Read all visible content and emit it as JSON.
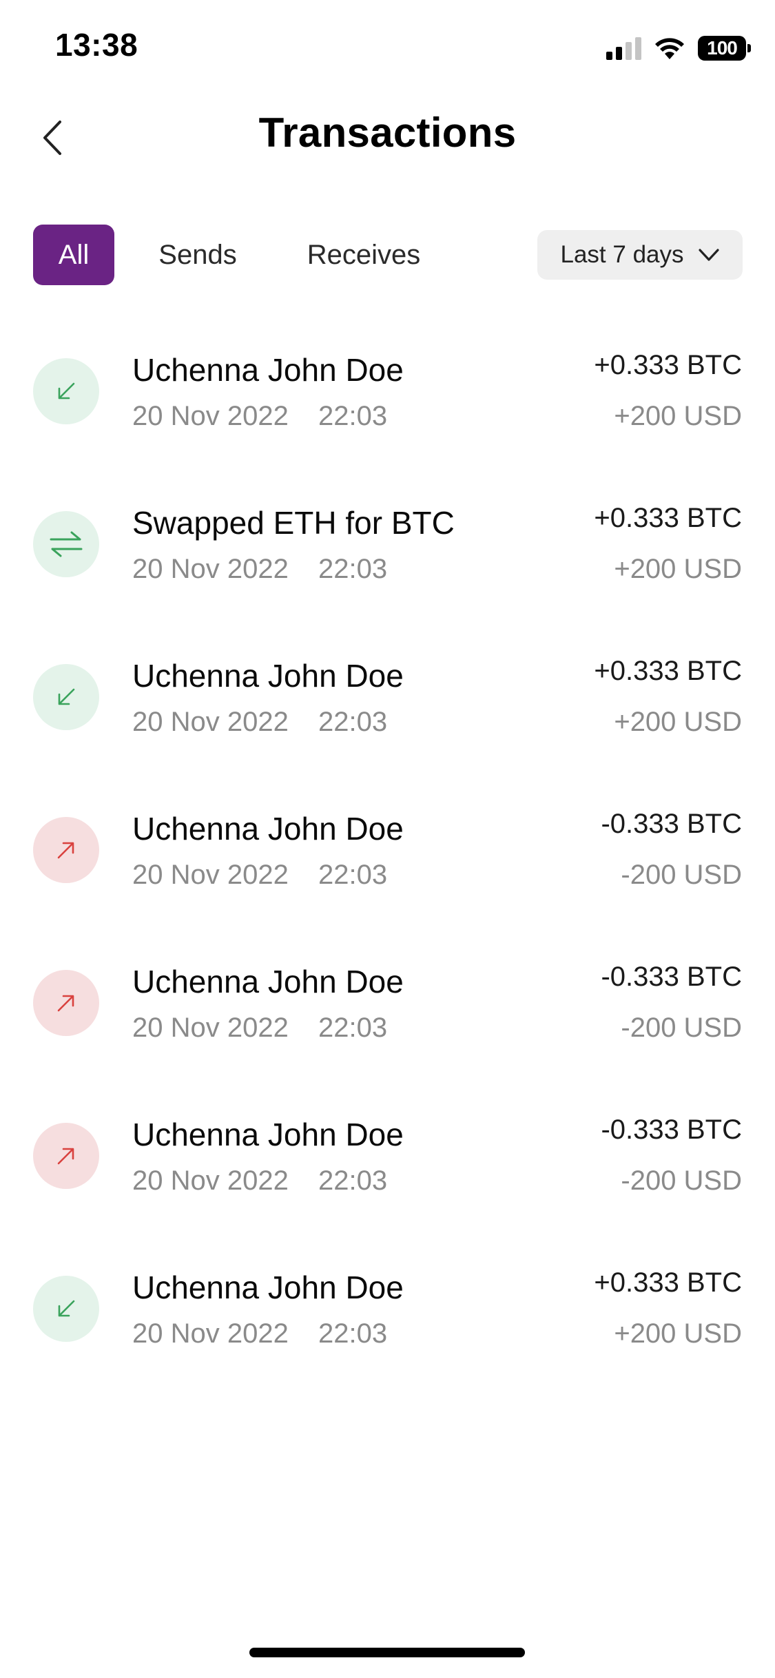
{
  "status_bar": {
    "time": "13:38",
    "battery": "100",
    "icons": [
      "signal-icon",
      "wifi-icon",
      "battery-icon"
    ]
  },
  "header": {
    "title": "Transactions",
    "back_icon": "chevron-left-icon"
  },
  "filters": {
    "tabs": [
      {
        "label": "All",
        "active": true
      },
      {
        "label": "Sends",
        "active": false
      },
      {
        "label": "Receives",
        "active": false
      }
    ],
    "date_range": {
      "label": "Last 7 days",
      "icon": "chevron-down-icon"
    }
  },
  "colors": {
    "accent": "#6a2384",
    "incoming_bg": "#e4f3ea",
    "incoming_fg": "#3aa35c",
    "outgoing_bg": "#f6dedf",
    "outgoing_fg": "#d9423f"
  },
  "transactions": [
    {
      "kind": "receive",
      "icon": "arrow-down-left-icon",
      "name": "Uchenna John Doe",
      "date": "20 Nov 2022",
      "time": "22:03",
      "crypto": "+0.333 BTC",
      "fiat": "+200 USD"
    },
    {
      "kind": "swap",
      "icon": "swap-arrows-icon",
      "name": "Swapped ETH for BTC",
      "date": "20 Nov 2022",
      "time": "22:03",
      "crypto": "+0.333 BTC",
      "fiat": "+200 USD"
    },
    {
      "kind": "receive",
      "icon": "arrow-down-left-icon",
      "name": "Uchenna John Doe",
      "date": "20 Nov 2022",
      "time": "22:03",
      "crypto": "+0.333 BTC",
      "fiat": "+200 USD"
    },
    {
      "kind": "send",
      "icon": "arrow-up-right-icon",
      "name": "Uchenna John Doe",
      "date": "20 Nov 2022",
      "time": "22:03",
      "crypto": "-0.333 BTC",
      "fiat": "-200 USD"
    },
    {
      "kind": "send",
      "icon": "arrow-up-right-icon",
      "name": "Uchenna John Doe",
      "date": "20 Nov 2022",
      "time": "22:03",
      "crypto": "-0.333 BTC",
      "fiat": "-200 USD"
    },
    {
      "kind": "send",
      "icon": "arrow-up-right-icon",
      "name": "Uchenna John Doe",
      "date": "20 Nov 2022",
      "time": "22:03",
      "crypto": "-0.333 BTC",
      "fiat": "-200 USD"
    },
    {
      "kind": "receive",
      "icon": "arrow-down-left-icon",
      "name": "Uchenna John Doe",
      "date": "20 Nov 2022",
      "time": "22:03",
      "crypto": "+0.333 BTC",
      "fiat": "+200 USD"
    }
  ]
}
